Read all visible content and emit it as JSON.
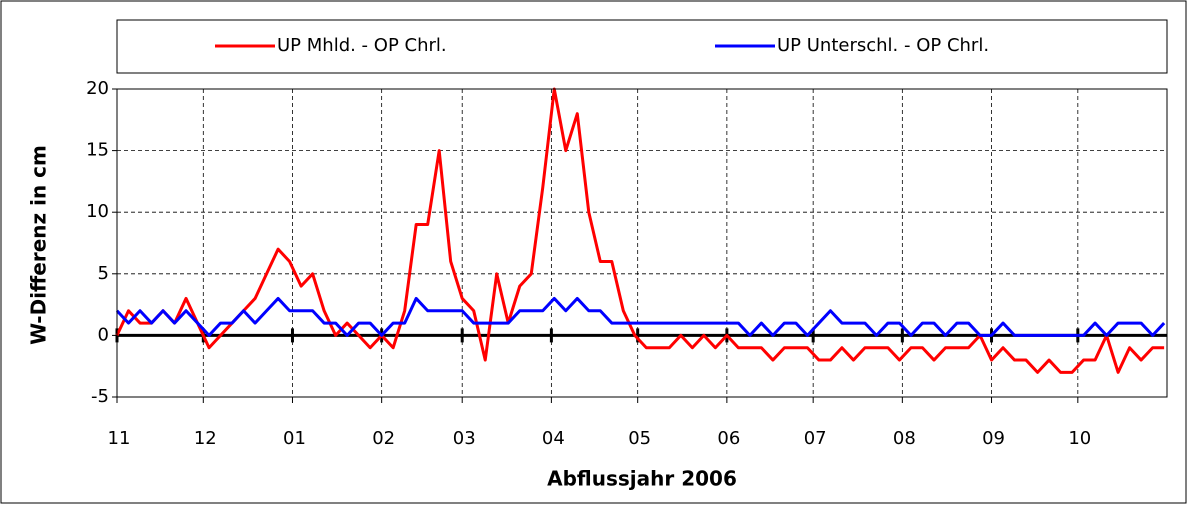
{
  "chart_data": {
    "type": "line",
    "xlabel": "Abflussjahr 2006",
    "ylabel": "W-Differenz in cm",
    "x": [
      0,
      4,
      8,
      12,
      16,
      20,
      24,
      28,
      32,
      36,
      40,
      44,
      48,
      52,
      56,
      60,
      64,
      68,
      72,
      76,
      80,
      84,
      88,
      92,
      96,
      100,
      104,
      108,
      112,
      116,
      120,
      124,
      128,
      132,
      136,
      140,
      144,
      148,
      152,
      156,
      160,
      164,
      168,
      172,
      176,
      180,
      184,
      188,
      192,
      196,
      200,
      204,
      208,
      212,
      216,
      220,
      224,
      228,
      232,
      236,
      240,
      244,
      248,
      252,
      256,
      260,
      264,
      268,
      272,
      276,
      280,
      284,
      288,
      292,
      296,
      300,
      304,
      308,
      312,
      316,
      320,
      324,
      328,
      332,
      336,
      340,
      344,
      348,
      352,
      356,
      360,
      364
    ],
    "series": [
      {
        "name": "UP Mhld. - OP Chrl.",
        "color": "#ff0000",
        "values": [
          0,
          2,
          1,
          1,
          2,
          1,
          3,
          1,
          -1,
          0,
          1,
          2,
          3,
          5,
          7,
          6,
          4,
          5,
          2,
          0,
          1,
          0,
          -1,
          0,
          -1,
          2,
          9,
          9,
          15,
          6,
          3,
          2,
          -2,
          5,
          1,
          4,
          5,
          12,
          20,
          15,
          18,
          10,
          6,
          6,
          2,
          0,
          -1,
          -1,
          -1,
          0,
          -1,
          0,
          -1,
          0,
          -1,
          -1,
          -1,
          -2,
          -1,
          -1,
          -1,
          -2,
          -2,
          -1,
          -2,
          -1,
          -1,
          -1,
          -2,
          -1,
          -1,
          -2,
          -1,
          -1,
          -1,
          0,
          -2,
          -1,
          -2,
          -2,
          -3,
          -2,
          -3,
          -3,
          -2,
          -2,
          0,
          -3,
          -1,
          -2,
          -1,
          -1
        ]
      },
      {
        "name": "UP Unterschl. - OP Chrl.",
        "color": "#0000ff",
        "values": [
          2,
          1,
          2,
          1,
          2,
          1,
          2,
          1,
          0,
          1,
          1,
          2,
          1,
          2,
          3,
          2,
          2,
          2,
          1,
          1,
          0,
          1,
          1,
          0,
          1,
          1,
          3,
          2,
          2,
          2,
          2,
          1,
          1,
          1,
          1,
          2,
          2,
          2,
          3,
          2,
          3,
          2,
          2,
          1,
          1,
          1,
          1,
          1,
          1,
          1,
          1,
          1,
          1,
          1,
          1,
          0,
          1,
          0,
          1,
          1,
          0,
          1,
          2,
          1,
          1,
          1,
          0,
          1,
          1,
          0,
          1,
          1,
          0,
          1,
          1,
          0,
          0,
          1,
          0,
          0,
          0,
          0,
          0,
          0,
          0,
          1,
          0,
          1,
          1,
          1,
          0,
          1
        ]
      }
    ],
    "xlim": [
      0,
      365
    ],
    "xticks": [
      {
        "value": 0,
        "label": "11"
      },
      {
        "value": 30,
        "label": "12"
      },
      {
        "value": 61,
        "label": "01"
      },
      {
        "value": 92,
        "label": "02"
      },
      {
        "value": 120,
        "label": "03"
      },
      {
        "value": 151,
        "label": "04"
      },
      {
        "value": 181,
        "label": "05"
      },
      {
        "value": 212,
        "label": "06"
      },
      {
        "value": 242,
        "label": "07"
      },
      {
        "value": 273,
        "label": "08"
      },
      {
        "value": 304,
        "label": "09"
      },
      {
        "value": 334,
        "label": "10"
      }
    ],
    "ylim": [
      -5,
      20
    ],
    "yticks": [
      -5,
      0,
      5,
      10,
      15,
      20
    ],
    "grid": true
  }
}
